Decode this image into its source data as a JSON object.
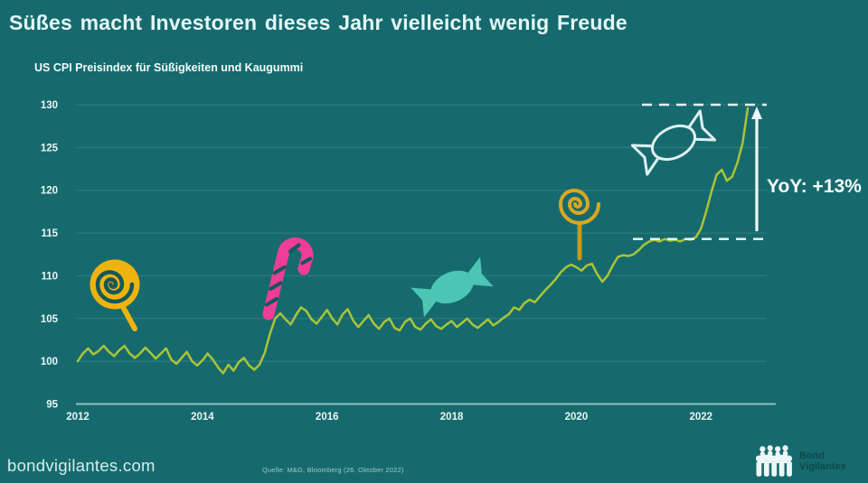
{
  "header": {
    "title": "Süßes macht Investoren dieses Jahr vielleicht wenig Freude"
  },
  "chart": {
    "subtitle": "US CPI Preisindex für Süßigkeiten und Kaugummi"
  },
  "annotation": {
    "yoy_label": "YoY: +13%"
  },
  "footer": {
    "site": "bondvigilantes.com",
    "source": "Quelle: M&G, Bloomberg (26. Oktober 2022)",
    "logo_line1": "Bond",
    "logo_line2": "Vigilantes"
  },
  "colors": {
    "background": "#166a6d",
    "line": "#aac438",
    "gold": "#efb310",
    "pink": "#ef3d97",
    "turquoise": "#4cc5b5",
    "outline_yellow": "#d9a821",
    "white": "#eaf6f6"
  },
  "chart_data": {
    "type": "line",
    "title": "US CPI Preisindex für Süßigkeiten und Kaugummi",
    "x_start": "2012-01",
    "x_interval": "monatlich",
    "x_end": "2022-10",
    "ylim": [
      95,
      130
    ],
    "yticks": [
      95,
      100,
      105,
      110,
      115,
      120,
      125,
      130
    ],
    "xticks": [
      2012,
      2014,
      2016,
      2018,
      2020,
      2022
    ],
    "grid": "horizontal",
    "legend": "none",
    "series": [
      {
        "name": "US CPI Süßigkeiten und Kaugummi (Index)",
        "values": [
          100.0,
          100.9,
          101.5,
          100.8,
          101.2,
          101.8,
          101.1,
          100.6,
          101.3,
          101.8,
          100.9,
          100.4,
          100.9,
          101.6,
          101.0,
          100.3,
          100.9,
          101.5,
          100.2,
          99.7,
          100.4,
          101.1,
          100.0,
          99.5,
          100.1,
          100.9,
          100.2,
          99.3,
          98.6,
          99.6,
          98.9,
          99.9,
          100.4,
          99.5,
          99.0,
          99.6,
          101.0,
          103.2,
          105.0,
          105.6,
          104.9,
          104.3,
          105.4,
          106.3,
          105.9,
          104.9,
          104.4,
          105.2,
          106.0,
          105.0,
          104.3,
          105.5,
          106.1,
          104.8,
          104.0,
          104.7,
          105.4,
          104.4,
          103.8,
          104.6,
          105.0,
          103.9,
          103.6,
          104.6,
          105.0,
          104.0,
          103.7,
          104.4,
          104.9,
          104.1,
          103.8,
          104.3,
          104.7,
          104.0,
          104.5,
          105.0,
          104.3,
          103.9,
          104.4,
          104.9,
          104.2,
          104.6,
          105.1,
          105.5,
          106.3,
          106.0,
          106.8,
          107.2,
          106.9,
          107.6,
          108.3,
          108.9,
          109.6,
          110.4,
          111.0,
          111.3,
          111.0,
          110.6,
          111.2,
          111.4,
          110.2,
          109.3,
          110.0,
          111.2,
          112.2,
          112.4,
          112.3,
          112.5,
          113.0,
          113.6,
          114.0,
          114.2,
          114.0,
          114.3,
          114.1,
          114.2,
          114.0,
          114.3,
          114.2,
          114.5,
          115.5,
          117.5,
          119.8,
          121.8,
          122.4,
          121.1,
          121.6,
          123.2,
          125.5,
          129.6
        ]
      }
    ],
    "annotations": {
      "dashed_upper_value": 130,
      "dashed_lower_value": 114.3,
      "yoy_change": "+13%",
      "icons": [
        "lollipop-filled",
        "candy-cane",
        "wrapped-candy-filled",
        "lollipop-outline",
        "wrapped-candy-outline"
      ]
    }
  }
}
